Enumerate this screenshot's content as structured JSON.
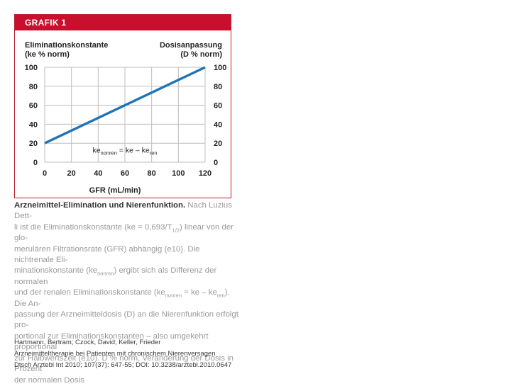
{
  "figure": {
    "label": "GRAFIK 1"
  },
  "chart_data": {
    "type": "line",
    "ylabel_left_line1": "Eliminationskonstante",
    "ylabel_left_line2": "(ke % norm)",
    "ylabel_right_line1": "Dosisanpassung",
    "ylabel_right_line2": "(D % norm)",
    "xlabel": "GFR (mL/min)",
    "x_ticks": [
      "0",
      "20",
      "40",
      "60",
      "80",
      "100",
      "120"
    ],
    "y_ticks": [
      "0",
      "20",
      "40",
      "60",
      "80",
      "100"
    ],
    "xlim": [
      0,
      120
    ],
    "ylim": [
      0,
      100
    ],
    "series": [
      {
        "x": [
          0,
          120
        ],
        "y": [
          20,
          100
        ],
        "color": "#1f74b8"
      }
    ],
    "annotation": {
      "base": "ke",
      "sub1": "nonren",
      "mid": " = ke – ke",
      "sub2": "ren",
      "x": 60,
      "y": 10
    },
    "grid": true
  },
  "caption": {
    "title": "Arzneimittel-Elimination und Nierenfunktion.",
    "l1_rest": " Nach Luzius Dett-",
    "l2a": "li ist die Eliminationskonstante (ke = 0,693/T",
    "l2sub": "1/2",
    "l2b": ") linear von der glo-",
    "l3": "merulären Filtrationsrate (GFR) abhängig (e10). Die nichtrenale Eli-",
    "l4a": "minationskonstante (ke",
    "l4sub": "nonren",
    "l4b": ") ergibt sich als Differenz der normalen",
    "l5a": "und der renalen Eliminationskonstante (ke",
    "l5sub1": "nonren",
    "l5b": " = ke – ke",
    "l5sub2": "ren",
    "l5c": "). Die An-",
    "l6": "passung der Arzneimitteldosis (D) an die Nierenfunktion erfolgt pro-",
    "l7": "portional zur Eliminationskonstanten – also umgekehrt proportional",
    "l8": "zur Halbwertszeit (e10). D % norm, Veränderung der Dosis in Prozent",
    "l9": "der normalen Dosis"
  },
  "citation": {
    "authors": "Hartmann, Bertram; Czock, David; Keller, Frieder",
    "title": "Arzneimitteltherapie bei Patienten mit chronischem Nierenversagen",
    "source": "Dtsch Arztebl Int 2010; 107(37): 647-55; DOI: 10.3238/arztebl.2010.0647"
  }
}
